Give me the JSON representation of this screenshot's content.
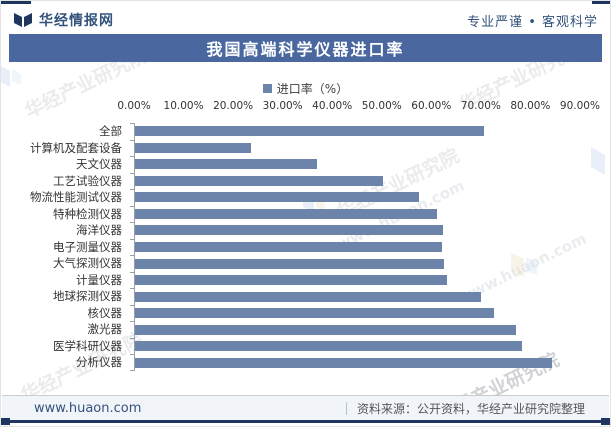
{
  "header": {
    "brand": "华经情报网",
    "slogan": "专业严谨 • 客观科学"
  },
  "title_bar": {
    "title": "我国高端科学仪器进口率"
  },
  "legend": {
    "label": "进口率（%）"
  },
  "chart_data": {
    "type": "bar",
    "orientation": "horizontal",
    "title": "我国高端科学仪器进口率",
    "series_name": "进口率（%）",
    "categories": [
      "全部",
      "计算机及配套设备",
      "天文仪器",
      "工艺试验仪器",
      "物流性能测试仪器",
      "特种检测仪器",
      "海洋仪器",
      "电子测量仪器",
      "大气探测仪器",
      "计量仪器",
      "地球探测仪器",
      "核仪器",
      "激光器",
      "医学科研仪器",
      "分析仪器"
    ],
    "values": [
      70.4,
      23.4,
      36.7,
      50.0,
      57.3,
      60.9,
      62.1,
      61.9,
      62.3,
      62.9,
      69.8,
      72.4,
      76.8,
      78.0,
      84.1
    ],
    "unit": "%",
    "xlim": [
      0,
      90
    ],
    "x_ticks": [
      "0.00%",
      "10.00%",
      "20.00%",
      "30.00%",
      "40.00%",
      "50.00%",
      "60.00%",
      "70.00%",
      "80.00%",
      "90.00%"
    ],
    "bar_color": "#6D84AA",
    "grid": false,
    "legend_position": "top-center"
  },
  "footer": {
    "site": "www.huaon.com",
    "source": "资料来源：公开资料，华经产业研究院整理"
  },
  "watermarks": {
    "texts": [
      "华经产业研究院",
      "www.huaon.com"
    ]
  },
  "colors": {
    "accent_navy": "#1F3760",
    "title_bg": "#4A689F",
    "bar": "#6D84AA",
    "brand_text": "#33527C",
    "footer_bg": "#F1F5F9"
  }
}
